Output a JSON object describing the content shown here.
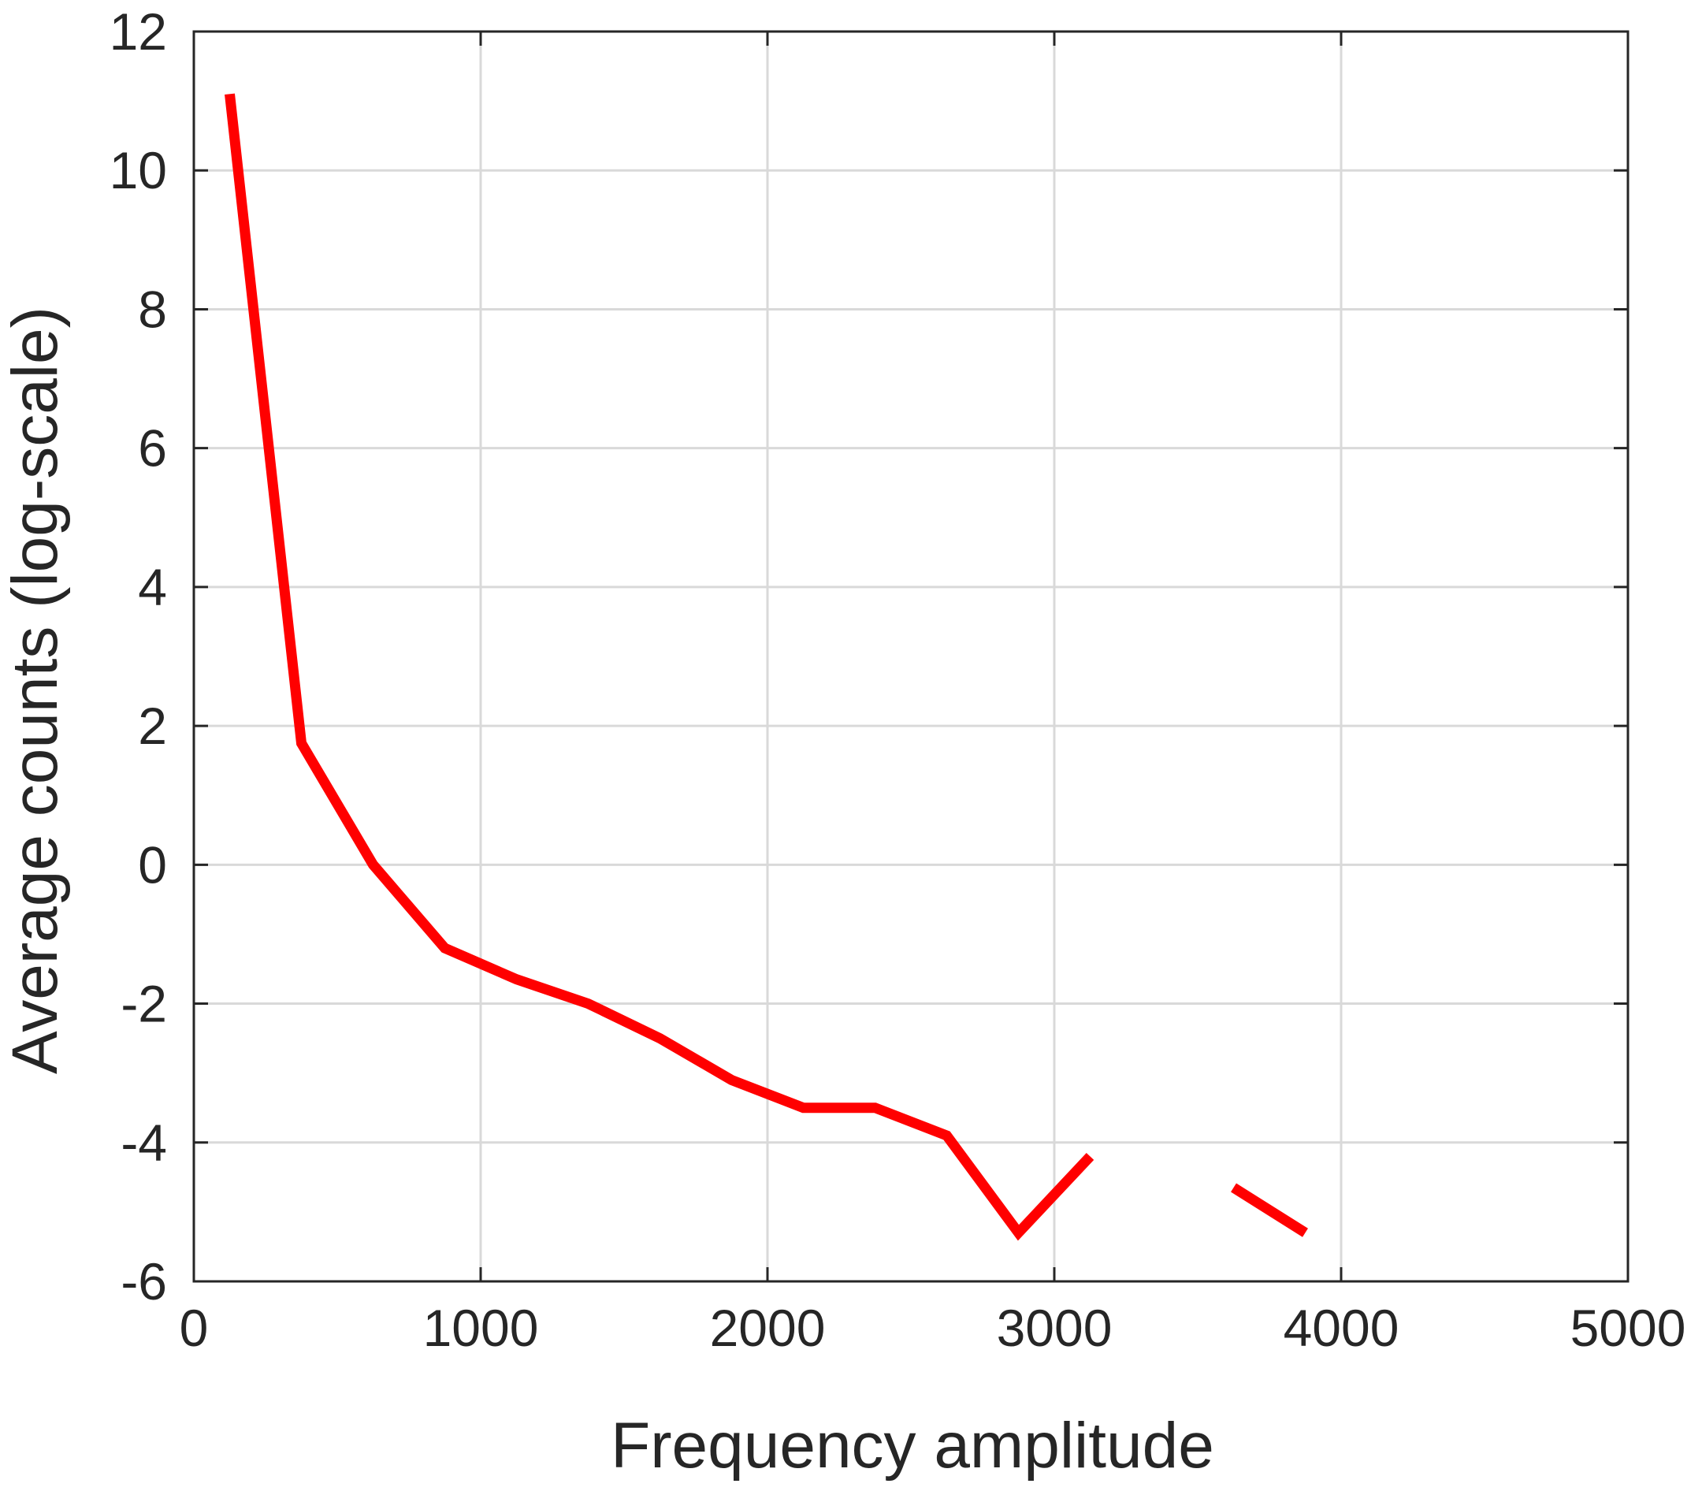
{
  "chart_data": {
    "type": "line",
    "title": "",
    "xlabel": "Frequency amplitude",
    "ylabel": "Average counts (log-scale)",
    "xlim": [
      0,
      5000
    ],
    "ylim": [
      -6,
      12
    ],
    "xticks": [
      0,
      1000,
      2000,
      3000,
      4000,
      5000
    ],
    "yticks": [
      -6,
      -4,
      -2,
      0,
      2,
      4,
      6,
      8,
      10,
      12
    ],
    "xtick_labels": [
      "0",
      "1000",
      "2000",
      "3000",
      "4000",
      "5000"
    ],
    "ytick_labels": [
      "-6",
      "-4",
      "-2",
      "0",
      "2",
      "4",
      "6",
      "8",
      "10",
      "12"
    ],
    "grid": true,
    "box": true,
    "series": [
      {
        "color": "#ff0000",
        "points": [
          [
            125,
            11.1
          ],
          [
            375,
            1.75
          ],
          [
            625,
            0.0
          ],
          [
            875,
            -1.2
          ],
          [
            1125,
            -1.65
          ],
          [
            1375,
            -2.0
          ],
          [
            1625,
            -2.5
          ],
          [
            1875,
            -3.1
          ],
          [
            2125,
            -3.5
          ],
          [
            2375,
            -3.5
          ],
          [
            2625,
            -3.9
          ],
          [
            2875,
            -5.3
          ],
          [
            3125,
            -4.2
          ],
          null,
          [
            3625,
            -4.65
          ],
          [
            3875,
            -5.3
          ]
        ]
      }
    ]
  }
}
